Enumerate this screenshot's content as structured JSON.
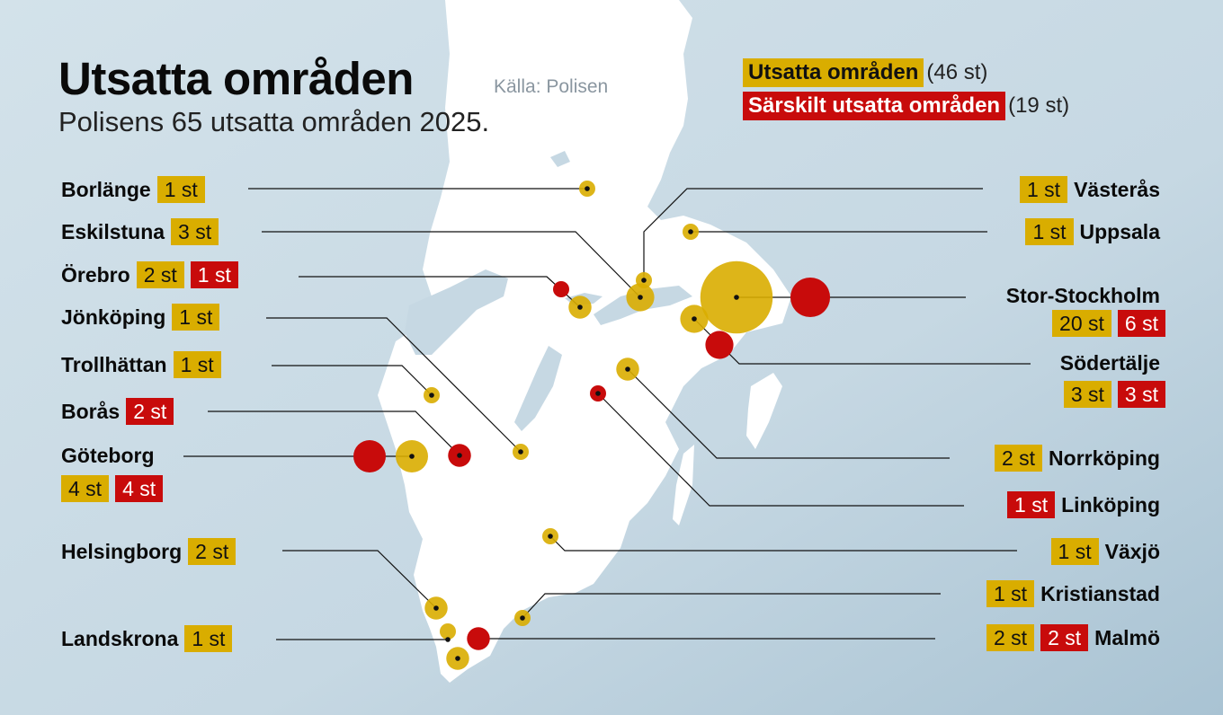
{
  "title": "Utsatta områden",
  "source": "Källa: Polisen",
  "subtitle": "Polisens 65 utsatta områden 2025.",
  "legend": {
    "yellow_label": "Utsatta områden",
    "yellow_count": "(46 st)",
    "red_label": "Särskilt utsatta områden",
    "red_count": "(19 st)"
  },
  "colors": {
    "yellow": "#d9ad00",
    "red": "#c80b0b",
    "land": "#ffffff",
    "sea": "#c9dbe6"
  },
  "cities": {
    "borlange": {
      "name": "Borlänge",
      "yellow": "1 st",
      "yellow_n": 1
    },
    "eskilstuna": {
      "name": "Eskilstuna",
      "yellow": "3 st",
      "yellow_n": 3
    },
    "orebro": {
      "name": "Örebro",
      "yellow": "2 st",
      "red": "1 st",
      "yellow_n": 2,
      "red_n": 1
    },
    "jonkoping": {
      "name": "Jönköping",
      "yellow": "1 st",
      "yellow_n": 1
    },
    "trollhattan": {
      "name": "Trollhättan",
      "yellow": "1 st",
      "yellow_n": 1
    },
    "boras": {
      "name": "Borås",
      "red": "2 st",
      "red_n": 2
    },
    "goteborg": {
      "name": "Göteborg",
      "yellow": "4 st",
      "red": "4 st",
      "yellow_n": 4,
      "red_n": 4
    },
    "helsingborg": {
      "name": "Helsingborg",
      "yellow": "2 st",
      "yellow_n": 2
    },
    "landskrona": {
      "name": "Landskrona",
      "yellow": "1 st",
      "yellow_n": 1
    },
    "vasteras": {
      "name": "Västerås",
      "yellow": "1 st",
      "yellow_n": 1
    },
    "uppsala": {
      "name": "Uppsala",
      "yellow": "1 st",
      "yellow_n": 1
    },
    "stockholm": {
      "name": "Stor-Stockholm",
      "yellow": "20 st",
      "red": "6 st",
      "yellow_n": 20,
      "red_n": 6
    },
    "sodertalje": {
      "name": "Södertälje",
      "yellow": "3 st",
      "red": "3 st",
      "yellow_n": 3,
      "red_n": 3
    },
    "norrkoping": {
      "name": "Norrköping",
      "yellow": "2 st",
      "yellow_n": 2
    },
    "linkoping": {
      "name": "Linköping",
      "red": "1 st",
      "red_n": 1
    },
    "vaxjo": {
      "name": "Växjö",
      "yellow": "1 st",
      "yellow_n": 1
    },
    "kristianstad": {
      "name": "Kristianstad",
      "yellow": "1 st",
      "yellow_n": 1
    },
    "malmo": {
      "name": "Malmö",
      "yellow": "2 st",
      "red": "2 st",
      "yellow_n": 2,
      "red_n": 2
    }
  }
}
